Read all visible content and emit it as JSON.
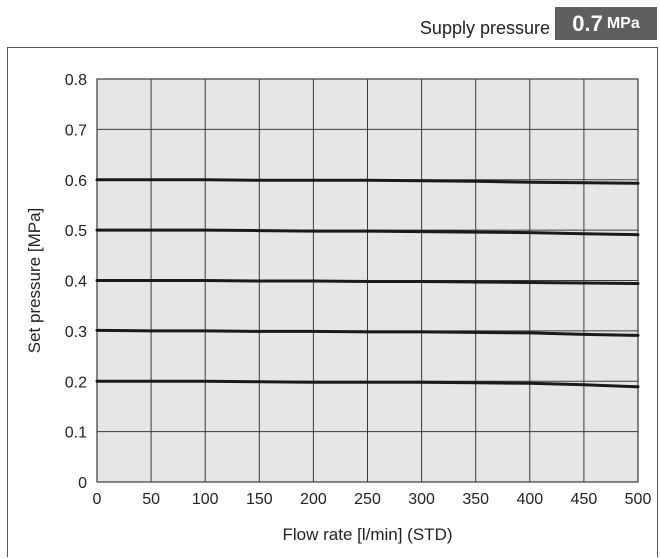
{
  "header": {
    "supply_label": "Supply pressure",
    "supply_value": "0.7",
    "supply_unit": "MPa"
  },
  "colors": {
    "plot_bg": "#e6e6e6",
    "grid": "#3a3a3a",
    "line": "#1a1a1a",
    "badge_bg": "#5f5f5f"
  },
  "chart_data": {
    "type": "line",
    "title": "",
    "xlabel": "Flow rate [l/min] (STD)",
    "ylabel": "Set pressure [MPa]",
    "xlim": [
      0,
      500
    ],
    "ylim": [
      0,
      0.8
    ],
    "xticks": [
      0,
      50,
      100,
      150,
      200,
      250,
      300,
      350,
      400,
      450,
      500
    ],
    "yticks": [
      0,
      0.1,
      0.2,
      0.3,
      0.4,
      0.5,
      0.6,
      0.7,
      0.8
    ],
    "ytick_labels": [
      "0",
      "0.1",
      "0.2",
      "0.3",
      "0.4",
      "0.5",
      "0.6",
      "0.7",
      "0.8"
    ],
    "grid": true,
    "x": [
      0,
      50,
      100,
      150,
      200,
      250,
      300,
      350,
      400,
      450,
      500
    ],
    "series": [
      {
        "values": [
          0.6,
          0.6,
          0.6,
          0.599,
          0.599,
          0.599,
          0.598,
          0.597,
          0.595,
          0.594,
          0.593
        ]
      },
      {
        "values": [
          0.5,
          0.5,
          0.5,
          0.499,
          0.498,
          0.498,
          0.497,
          0.496,
          0.495,
          0.493,
          0.491
        ]
      },
      {
        "values": [
          0.4,
          0.4,
          0.4,
          0.399,
          0.399,
          0.398,
          0.398,
          0.397,
          0.396,
          0.395,
          0.394
        ]
      },
      {
        "values": [
          0.301,
          0.3,
          0.3,
          0.299,
          0.299,
          0.298,
          0.298,
          0.297,
          0.296,
          0.293,
          0.291
        ]
      },
      {
        "values": [
          0.2,
          0.2,
          0.2,
          0.199,
          0.198,
          0.198,
          0.198,
          0.197,
          0.196,
          0.193,
          0.189
        ]
      }
    ]
  }
}
